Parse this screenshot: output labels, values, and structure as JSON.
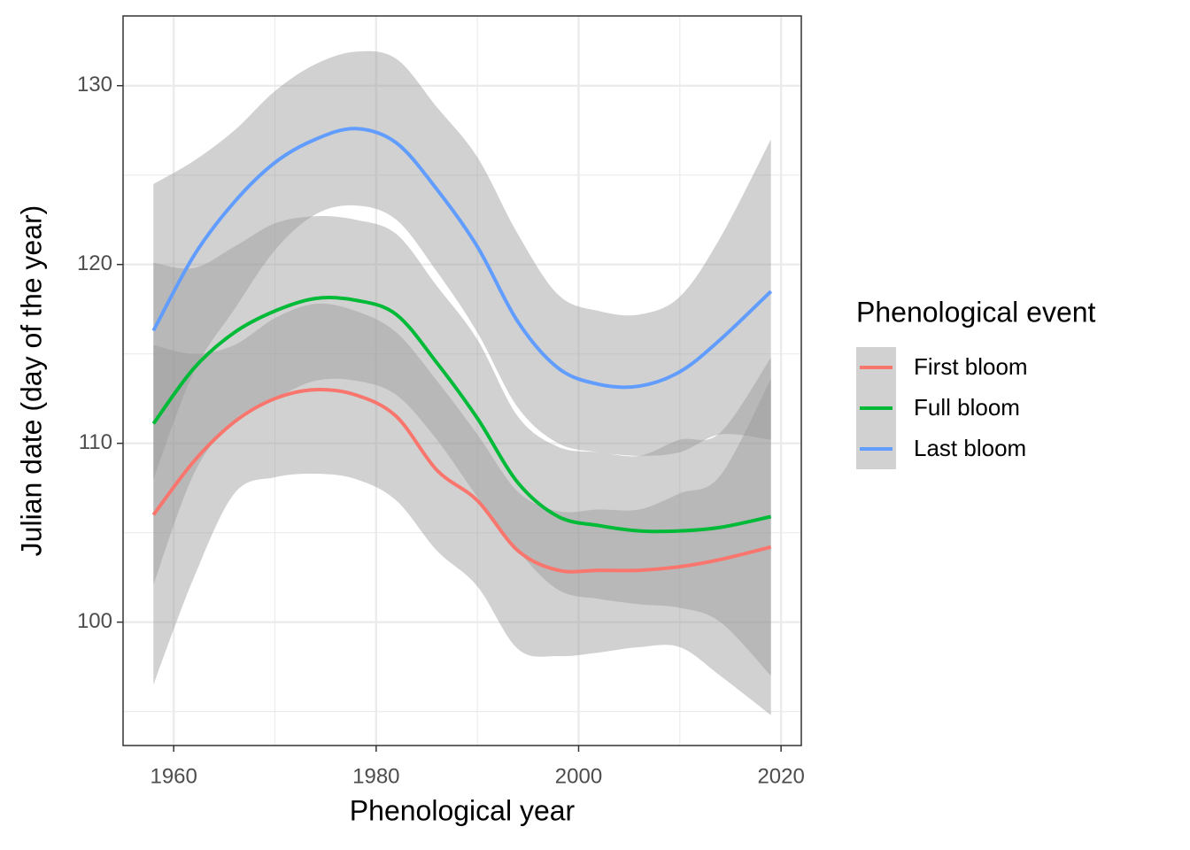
{
  "chart_data": {
    "type": "line",
    "x_label": "Phenological year",
    "y_label": "Julian date (day of the year)",
    "x": [
      1958,
      1962,
      1966,
      1970,
      1974,
      1978,
      1982,
      1986,
      1990,
      1994,
      1998,
      2002,
      2006,
      2010,
      2014,
      2019
    ],
    "series": [
      {
        "name": "First bloom",
        "color": "#F8766D",
        "values": [
          106.0,
          109.0,
          111.2,
          112.5,
          113.0,
          112.7,
          111.5,
          108.5,
          106.8,
          104.0,
          102.9,
          102.9,
          102.9,
          103.1,
          103.5,
          104.2
        ],
        "upper": [
          115.5,
          115.0,
          115.5,
          117.0,
          117.8,
          117.4,
          116.2,
          113.5,
          110.5,
          107.3,
          106.2,
          106.3,
          106.3,
          107.2,
          108.2,
          113.6
        ],
        "lower": [
          96.5,
          102.5,
          107.2,
          108.1,
          108.3,
          108.0,
          106.8,
          104.0,
          102.0,
          98.5,
          98.1,
          98.3,
          98.6,
          98.6,
          97.0,
          94.8
        ]
      },
      {
        "name": "Full bloom",
        "color": "#00BA38",
        "values": [
          111.1,
          114.2,
          116.2,
          117.4,
          118.1,
          118.0,
          117.2,
          114.5,
          111.4,
          107.8,
          105.9,
          105.4,
          105.1,
          105.1,
          105.3,
          105.9
        ],
        "upper": [
          120.1,
          119.8,
          121.0,
          122.3,
          122.7,
          122.5,
          121.7,
          118.8,
          115.8,
          111.5,
          109.8,
          109.5,
          109.3,
          110.2,
          110.6,
          114.8
        ],
        "lower": [
          102.1,
          108.3,
          111.3,
          112.5,
          113.5,
          113.5,
          112.7,
          110.2,
          107.0,
          104.0,
          101.8,
          101.3,
          101.0,
          100.8,
          100.0,
          97.0
        ]
      },
      {
        "name": "Last bloom",
        "color": "#619CFF",
        "values": [
          116.3,
          120.5,
          123.5,
          125.7,
          127.0,
          127.6,
          126.8,
          124.2,
          121.0,
          116.8,
          114.2,
          113.3,
          113.2,
          114.0,
          115.8,
          118.5
        ],
        "upper": [
          124.5,
          125.8,
          127.5,
          129.7,
          131.2,
          131.9,
          131.5,
          128.8,
          126.0,
          121.7,
          118.3,
          117.4,
          117.2,
          118.2,
          121.5,
          127.0
        ],
        "lower": [
          108.0,
          114.0,
          117.5,
          120.8,
          122.8,
          123.3,
          122.5,
          119.6,
          116.2,
          112.0,
          110.0,
          109.5,
          109.3,
          109.5,
          110.5,
          110.2
        ]
      }
    ],
    "legend_title": "Phenological event",
    "legend_position": "right",
    "ribbon_color": "#999999",
    "ribbon_alpha": 0.45,
    "xlim": [
      1955,
      2022
    ],
    "xticks": [
      1960,
      1980,
      2000,
      2020
    ],
    "x_minor_ticks": [
      1970,
      1990,
      2010
    ],
    "ylim": [
      93.1,
      133.9
    ],
    "yticks": [
      100,
      110,
      120,
      130
    ],
    "y_minor_ticks": [
      95,
      105,
      115,
      125
    ],
    "grid": true
  }
}
